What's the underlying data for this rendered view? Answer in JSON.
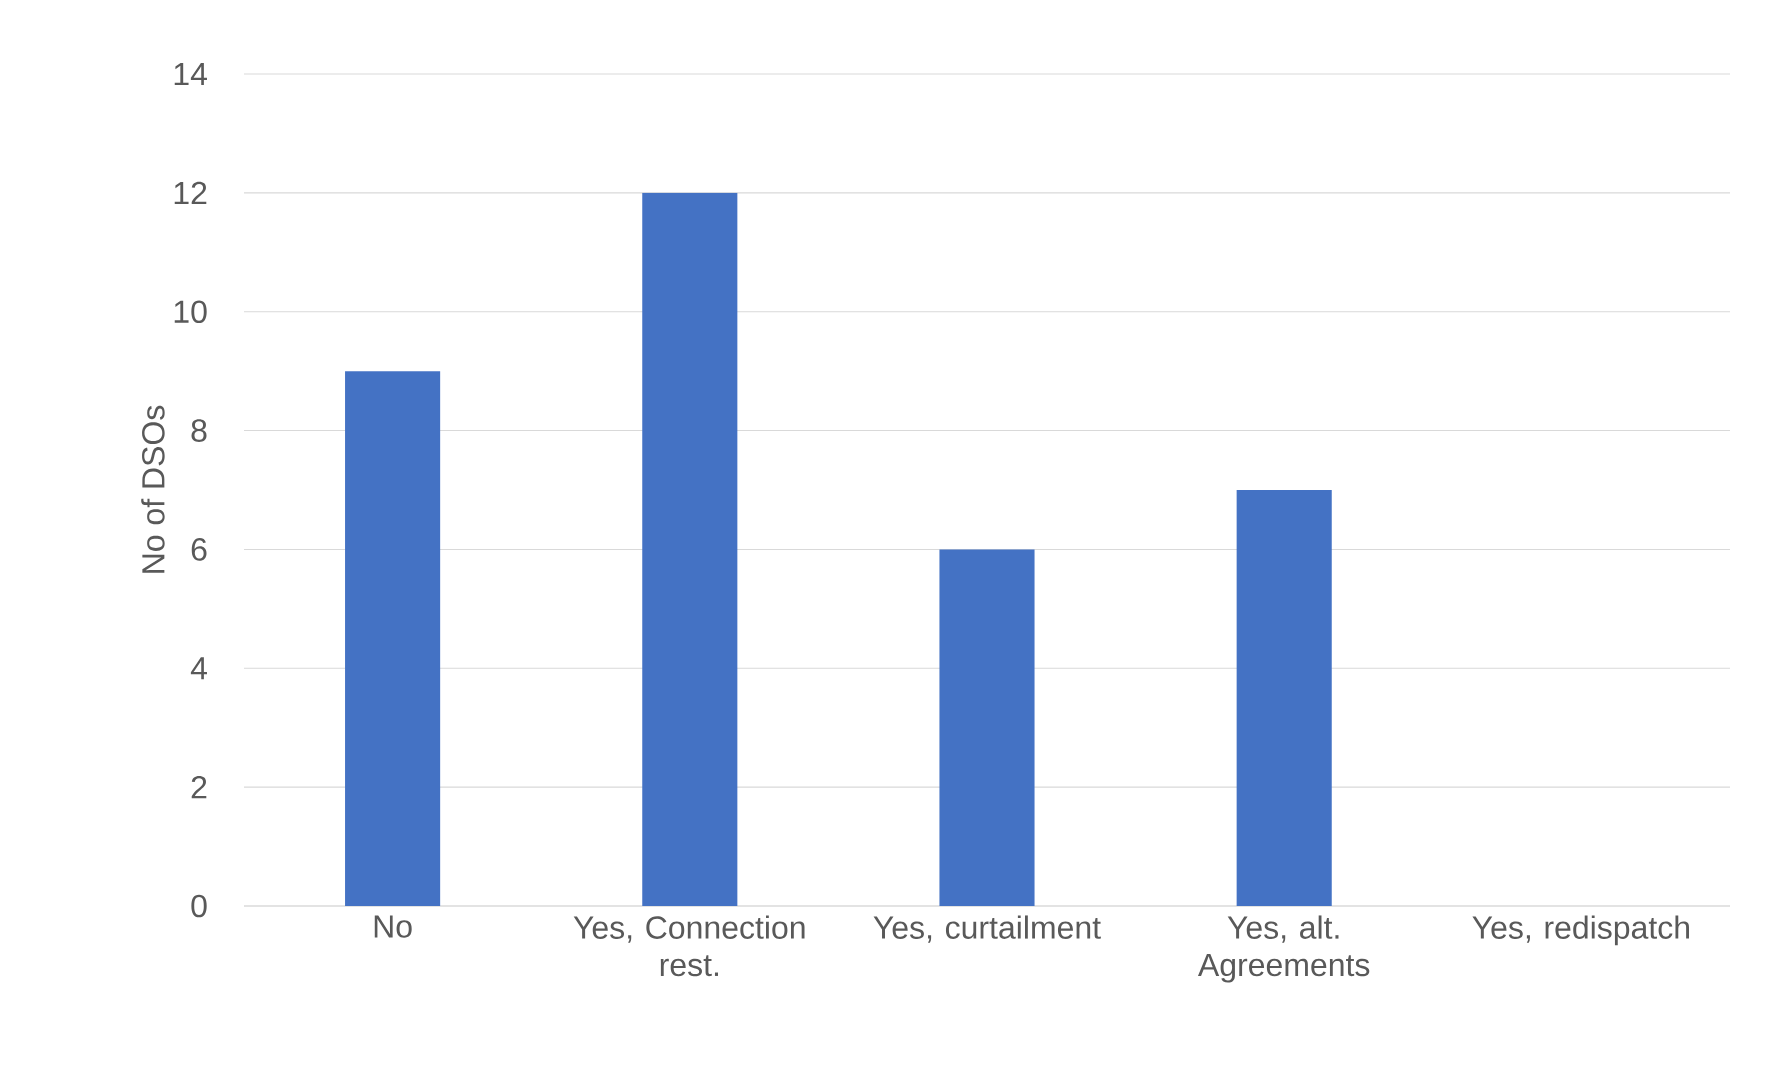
{
  "chart_data": {
    "type": "bar",
    "categories": [
      "No",
      "Yes, Connection rest.",
      "Yes, curtailment",
      "Yes, alt. Agreements",
      "Yes, redispatch"
    ],
    "values": [
      9,
      12,
      6,
      7,
      0
    ],
    "color": "#4472c4",
    "ylabel": "No of DSOs",
    "ylim": [
      0,
      14
    ],
    "yticks": [
      0,
      2,
      4,
      6,
      8,
      10,
      12,
      14
    ],
    "grid": "y"
  }
}
